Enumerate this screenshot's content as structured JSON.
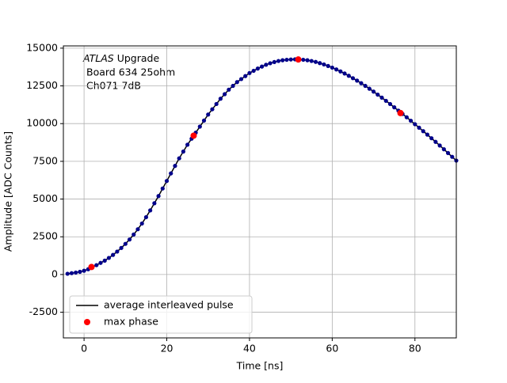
{
  "chart_data": {
    "type": "scatter",
    "xlabel": "Time [ns]",
    "ylabel": "Amplitude [ADC Counts]",
    "annotation": {
      "emphasis": "ATLAS",
      "lines": [
        "Upgrade",
        "Board 634 25ohm",
        "Ch071 7dB"
      ]
    },
    "xlim": [
      -5,
      90
    ],
    "xticks": [
      0,
      20,
      40,
      60,
      80
    ],
    "ylim": [
      -4200,
      15150
    ],
    "yticks": [
      -2500,
      0,
      2500,
      5000,
      7500,
      10000,
      12500,
      15000
    ],
    "grid": true,
    "legend": "lower left",
    "series": [
      {
        "name": "average interleaved pulse",
        "color": "#000000",
        "marker_color": "#00008b",
        "x": [
          -4,
          -3,
          -2,
          -1,
          0,
          1,
          2,
          3,
          4,
          5,
          6,
          7,
          8,
          9,
          10,
          11,
          12,
          13,
          14,
          15,
          16,
          17,
          18,
          19,
          20,
          21,
          22,
          23,
          24,
          25,
          26,
          27,
          28,
          29,
          30,
          31,
          32,
          33,
          34,
          35,
          36,
          37,
          38,
          39,
          40,
          41,
          42,
          43,
          44,
          45,
          46,
          47,
          48,
          49,
          50,
          51,
          52,
          53,
          54,
          55,
          56,
          57,
          58,
          59,
          60,
          61,
          62,
          63,
          64,
          65,
          66,
          67,
          68,
          69,
          70,
          71,
          72,
          73,
          74,
          75,
          76,
          77,
          78,
          79,
          80,
          81,
          82,
          83,
          84,
          85,
          86,
          87,
          88,
          89,
          90
        ],
        "values": [
          50,
          90,
          130,
          180,
          250,
          350,
          480,
          620,
          770,
          920,
          1100,
          1300,
          1520,
          1760,
          2030,
          2320,
          2650,
          3000,
          3380,
          3800,
          4250,
          4720,
          5200,
          5700,
          6200,
          6700,
          7200,
          7700,
          8150,
          8600,
          9000,
          9400,
          9800,
          10200,
          10600,
          10950,
          11300,
          11650,
          11950,
          12250,
          12500,
          12750,
          12950,
          13150,
          13350,
          13500,
          13650,
          13780,
          13900,
          14000,
          14080,
          14150,
          14200,
          14230,
          14250,
          14260,
          14250,
          14230,
          14200,
          14150,
          14090,
          14010,
          13920,
          13820,
          13710,
          13590,
          13460,
          13320,
          13170,
          13010,
          12850,
          12680,
          12500,
          12310,
          12120,
          11920,
          11720,
          11510,
          11300,
          11080,
          10860,
          10640,
          10420,
          10190,
          9960,
          9730,
          9500,
          9270,
          9030,
          8790,
          8550,
          8300,
          8050,
          7800,
          7550
        ]
      },
      {
        "name": "max phase",
        "color": "#ff0000",
        "x": [
          1.8,
          26.5,
          51.8,
          76.5
        ],
        "values": [
          500,
          9200,
          14250,
          10700
        ]
      }
    ]
  }
}
